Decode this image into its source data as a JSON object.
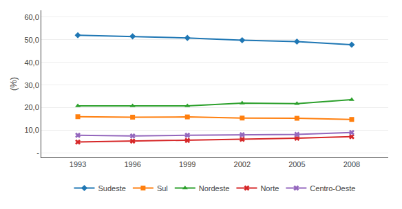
{
  "chart_data": {
    "type": "line",
    "ylabel": "(%)",
    "x": [
      1993,
      1996,
      1999,
      2002,
      2005,
      2008
    ],
    "series": [
      {
        "name": "Sudeste",
        "marker": "diamond",
        "values": [
          52.0,
          51.5,
          50.8,
          49.8,
          49.2,
          47.8
        ]
      },
      {
        "name": "Sul",
        "marker": "square",
        "values": [
          16.0,
          15.8,
          15.9,
          15.4,
          15.3,
          14.8
        ]
      },
      {
        "name": "Nordeste",
        "marker": "triangle",
        "values": [
          20.8,
          20.8,
          20.8,
          22.0,
          21.8,
          23.5
        ]
      },
      {
        "name": "Norte",
        "marker": "x",
        "values": [
          4.8,
          5.2,
          5.5,
          6.0,
          6.5,
          7.2
        ]
      },
      {
        "name": "Centro-Oeste",
        "marker": "x",
        "values": [
          7.8,
          7.5,
          7.8,
          8.0,
          8.2,
          9.0
        ]
      }
    ],
    "xlim": [
      1991,
      2010
    ],
    "xticks": [
      1993,
      1996,
      1999,
      2002,
      2005,
      2008
    ],
    "ylim": [
      -2,
      63
    ],
    "yticks": [
      {
        "value": 0,
        "label": "-"
      },
      {
        "value": 10,
        "label": "10,0"
      },
      {
        "value": 20,
        "label": "20,0"
      },
      {
        "value": 30,
        "label": "30,0"
      },
      {
        "value": 40,
        "label": "40,0"
      },
      {
        "value": 50,
        "label": "50,0"
      },
      {
        "value": 60,
        "label": "60,0"
      }
    ],
    "grid": "y",
    "legend": "bottom"
  }
}
